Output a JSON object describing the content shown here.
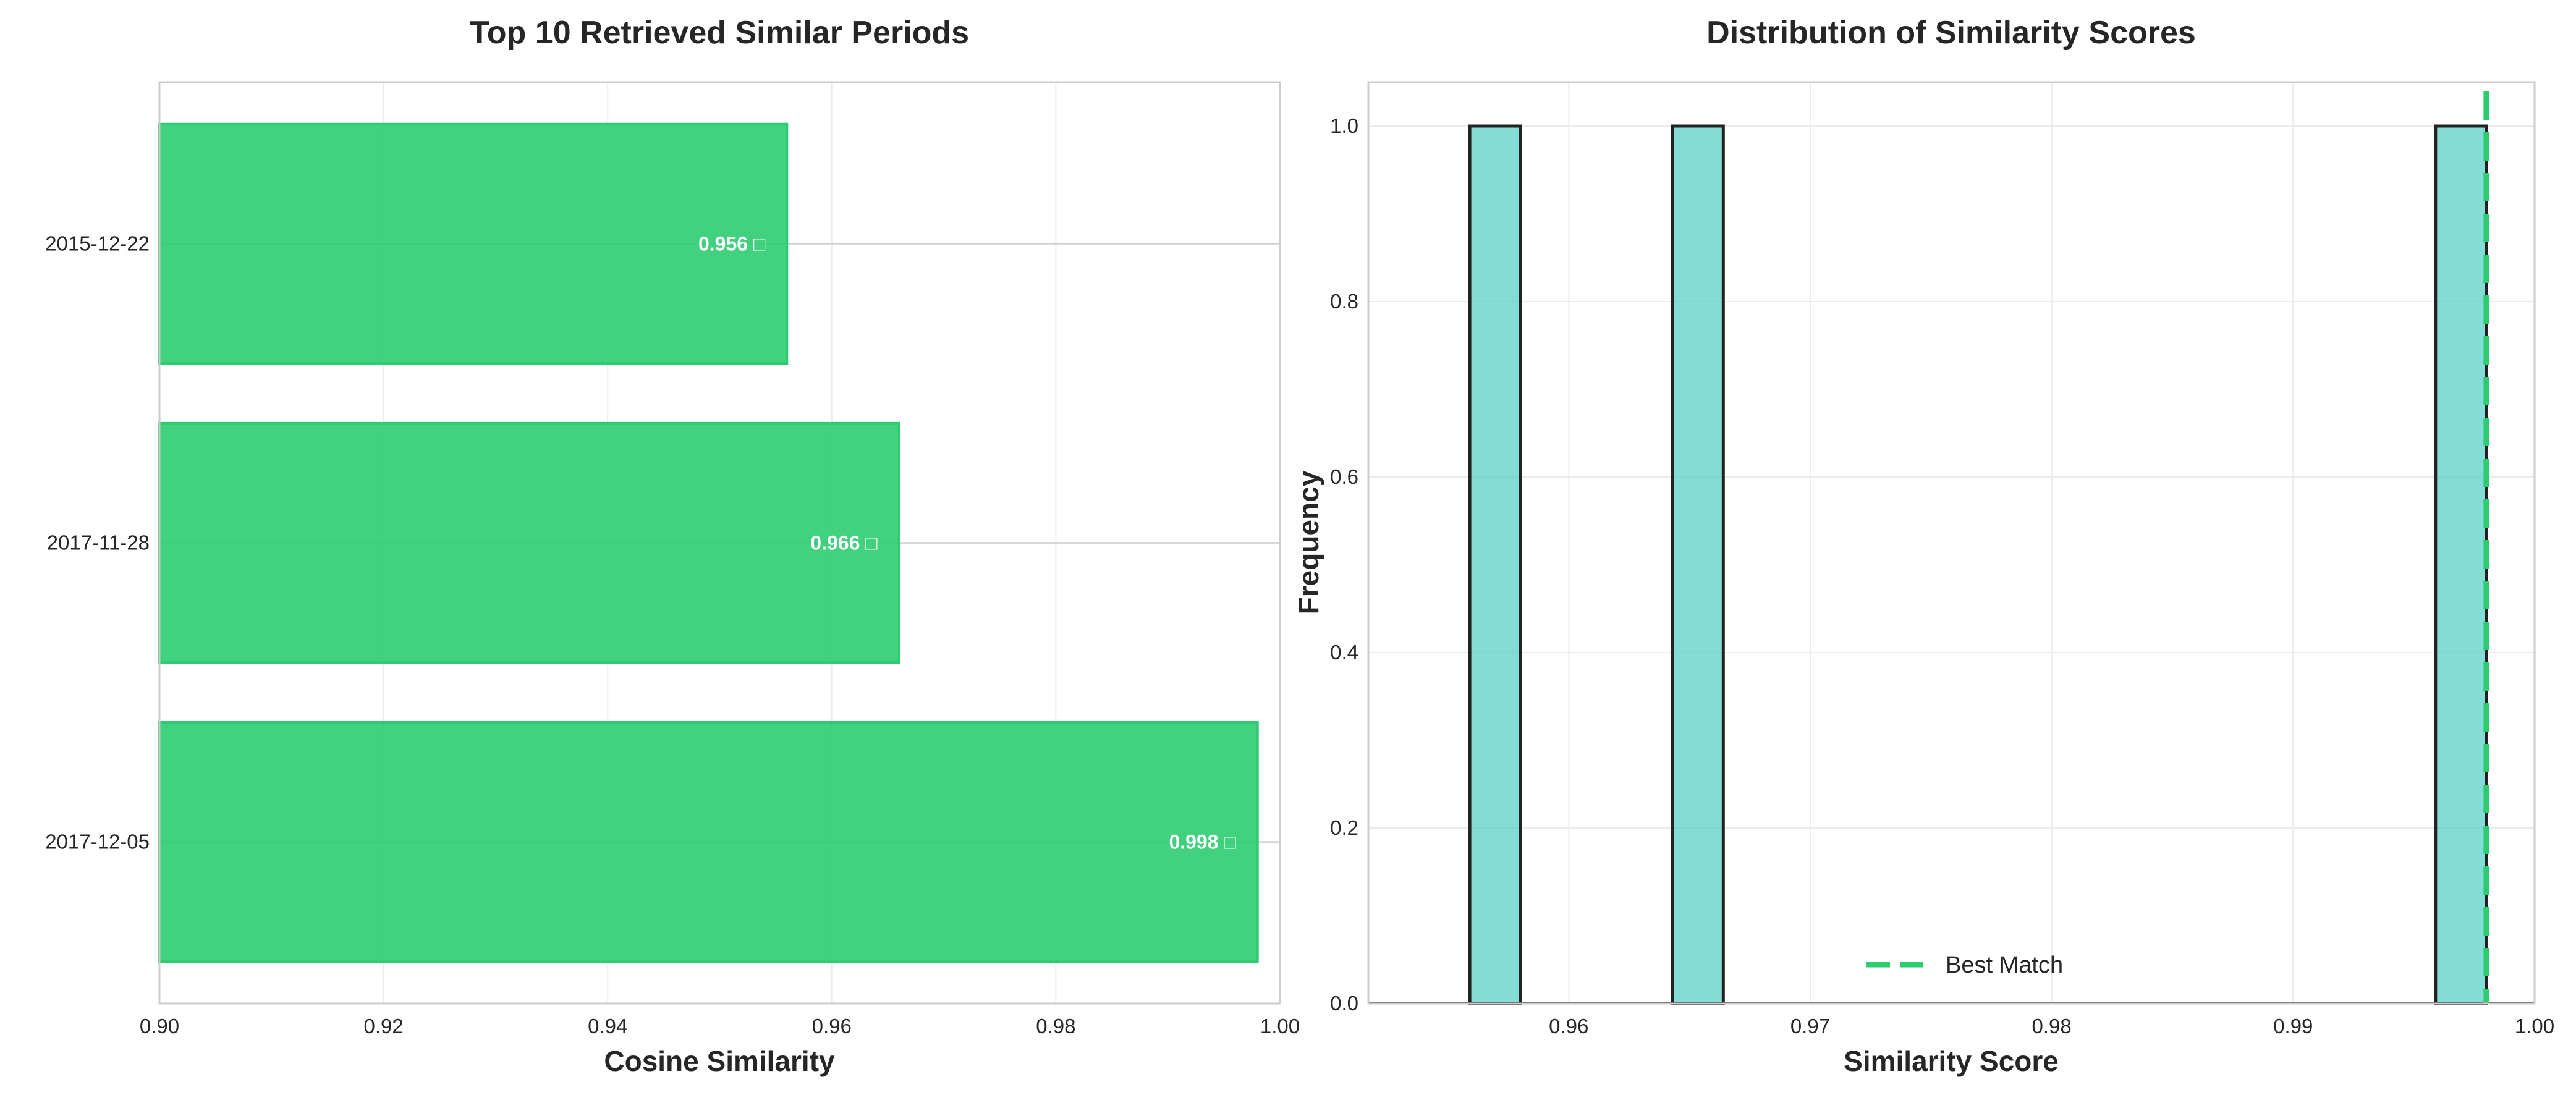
{
  "chart_data": [
    {
      "type": "bar",
      "orientation": "horizontal",
      "title": "Top 10 Retrieved Similar Periods",
      "xlabel": "Cosine Similarity",
      "ylabel": "",
      "categories": [
        "2017-12-05",
        "2017-11-28",
        "2015-12-22"
      ],
      "values": [
        0.998,
        0.966,
        0.956
      ],
      "data_labels": [
        "0.998 □",
        "0.966 □",
        "0.956 □"
      ],
      "xlim": [
        0.9,
        1.0
      ],
      "xticks": [
        "0.90",
        "0.92",
        "0.94",
        "0.96",
        "0.98",
        "1.00"
      ],
      "grid": true,
      "color": "#2ecc71"
    },
    {
      "type": "histogram",
      "title": "Distribution of Similarity Scores",
      "xlabel": "Similarity Score",
      "ylabel": "Frequency",
      "bins": [
        {
          "start": 0.9559,
          "end": 0.958,
          "count": 1
        },
        {
          "start": 0.9643,
          "end": 0.9664,
          "count": 1
        },
        {
          "start": 0.9959,
          "end": 0.998,
          "count": 1
        }
      ],
      "xlim": [
        0.9517,
        1.0
      ],
      "ylim": [
        0,
        1.05
      ],
      "xticks": [
        "0.96",
        "0.97",
        "0.98",
        "0.99",
        "1.00"
      ],
      "yticks": [
        "0.0",
        "0.2",
        "0.4",
        "0.6",
        "0.8",
        "1.0"
      ],
      "best_match": 0.998,
      "legend": [
        "Best Match"
      ],
      "legend_position": "bottom-center",
      "grid": true,
      "color": "#4ecdc4",
      "line_color": "#2ecc71"
    }
  ]
}
